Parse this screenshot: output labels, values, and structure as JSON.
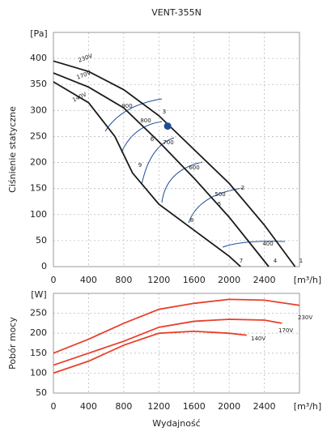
{
  "title": "VENT-355N",
  "chart_data": [
    {
      "type": "line",
      "y_label": "Ciśnienie statyczne",
      "y_unit": "[Pa]",
      "x_unit": "[m³/h]",
      "color": "#1a1a1a",
      "grid": true,
      "xlim": [
        0,
        2800
      ],
      "xticks": [
        0,
        400,
        800,
        1200,
        1600,
        2000,
        2400
      ],
      "ylim": [
        0,
        450
      ],
      "yticks": [
        0,
        50,
        100,
        150,
        200,
        250,
        300,
        350,
        400
      ],
      "series": [
        {
          "name": "230V",
          "x": [
            0,
            400,
            800,
            1200,
            1600,
            2000,
            2400,
            2750
          ],
          "values": [
            395,
            375,
            340,
            290,
            225,
            160,
            80,
            0
          ]
        },
        {
          "name": "170V",
          "x": [
            0,
            400,
            800,
            1200,
            1600,
            2000,
            2450
          ],
          "values": [
            372,
            345,
            305,
            240,
            170,
            95,
            0
          ]
        },
        {
          "name": "140V",
          "x": [
            0,
            400,
            700,
            900,
            1200,
            1600,
            2000,
            2130
          ],
          "values": [
            355,
            315,
            250,
            180,
            120,
            70,
            20,
            0
          ]
        }
      ],
      "operating_point": {
        "x": 1300,
        "y": 270,
        "color": "#1f4e9a"
      },
      "speed_labels": [
        "900",
        "800",
        "700",
        "600",
        "500",
        "400"
      ],
      "point_labels": [
        "1",
        "2",
        "3",
        "4",
        "5",
        "6",
        "7",
        "8",
        "9"
      ]
    },
    {
      "type": "line",
      "y_label": "Pobór mocy",
      "y_unit": "[W]",
      "x_unit": "[m³/h]",
      "x_label": "Wydajność",
      "color": "#e8402a",
      "grid": true,
      "xlim": [
        0,
        2800
      ],
      "xticks": [
        0,
        400,
        800,
        1200,
        1600,
        2000,
        2400
      ],
      "ylim": [
        50,
        300
      ],
      "yticks": [
        50,
        100,
        150,
        200,
        250
      ],
      "series": [
        {
          "name": "230V",
          "x": [
            0,
            400,
            800,
            1200,
            1600,
            2000,
            2400,
            2800
          ],
          "values": [
            150,
            185,
            225,
            260,
            275,
            285,
            283,
            270
          ]
        },
        {
          "name": "170V",
          "x": [
            0,
            400,
            800,
            1200,
            1600,
            2000,
            2400,
            2600
          ],
          "values": [
            120,
            150,
            180,
            215,
            230,
            235,
            233,
            225
          ]
        },
        {
          "name": "140V",
          "x": [
            0,
            400,
            800,
            1200,
            1600,
            2000,
            2200
          ],
          "values": [
            100,
            130,
            170,
            200,
            205,
            200,
            195
          ]
        }
      ]
    }
  ]
}
